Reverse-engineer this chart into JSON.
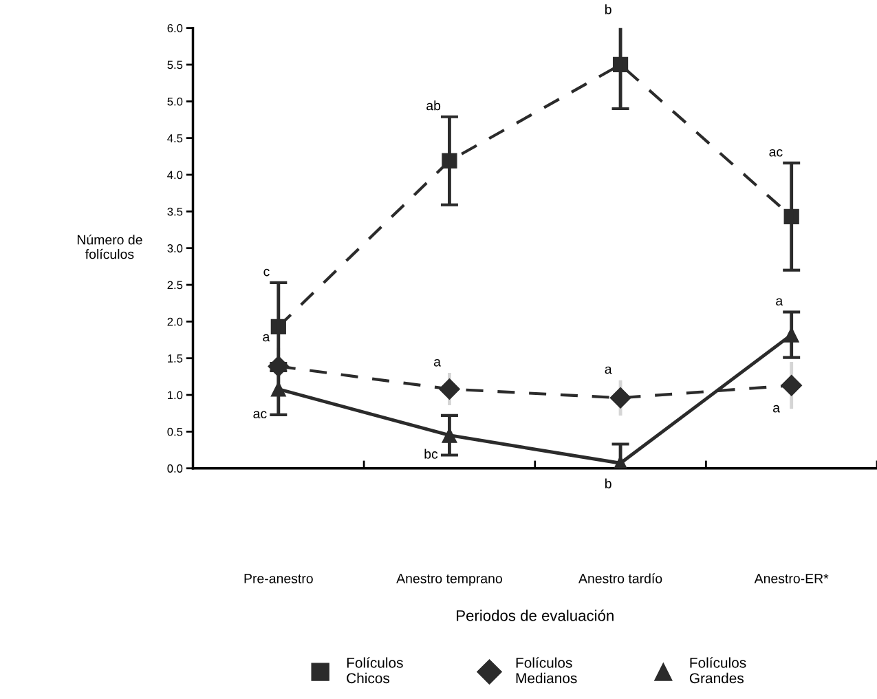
{
  "chart_data": {
    "type": "line",
    "categories": [
      "Pre-anestro",
      "Anestro temprano",
      "Anestro tardío",
      "Anestro-ER*"
    ],
    "xlabel": "Periodos de evaluación",
    "ylabel": "Número de\nfolículos",
    "ylim": [
      0,
      6
    ],
    "yticks": [
      {
        "value": 0,
        "label": "0.0"
      },
      {
        "value": 0.5,
        "label": "0.5"
      },
      {
        "value": 1,
        "label": "1.0"
      },
      {
        "value": 1.5,
        "label": "1.5"
      },
      {
        "value": 2,
        "label": "2.0"
      },
      {
        "value": 2.5,
        "label": "2.5"
      },
      {
        "value": 3,
        "label": "3.0"
      },
      {
        "value": 3.5,
        "label": "3.5"
      },
      {
        "value": 4,
        "label": "4.0"
      },
      {
        "value": 4.5,
        "label": "4.5"
      },
      {
        "value": 5,
        "label": "5.0"
      },
      {
        "value": 5.5,
        "label": "5.5"
      },
      {
        "value": 6,
        "label": "6.0"
      }
    ],
    "grid": false,
    "legend": "bottom",
    "series": [
      {
        "name": "Folículos\nChicos",
        "color": "#2b2b2b",
        "marker": "square",
        "line_style": "dashed",
        "values": [
          1.93,
          4.19,
          5.5,
          3.43
        ],
        "errors": [
          0.6,
          0.6,
          0.6,
          0.73
        ]
      },
      {
        "name": "Folículos\nMedianos",
        "color": "#2b2b2b",
        "marker": "diamond",
        "line_style": "dashed",
        "values": [
          1.39,
          1.08,
          0.96,
          1.13
        ],
        "errors": [
          0.25,
          0.22,
          0.24,
          0.32
        ]
      },
      {
        "name": "Folículos\nGrandes",
        "color": "#2b2b2b",
        "marker": "triangle",
        "line_style": "solid",
        "values": [
          1.08,
          0.45,
          0.07,
          1.82
        ],
        "errors": [
          0.35,
          0.27,
          0.26,
          0.31
        ]
      }
    ],
    "annotations": [
      {
        "text": "c",
        "x": "Pre-anestro",
        "y": 2.53
      },
      {
        "text": "ab",
        "x": "Anestro temprano",
        "y": 4.79
      },
      {
        "text": "b",
        "x": "Anestro tardío",
        "y": 6.1
      },
      {
        "text": "ac",
        "x": "Anestro-ER*",
        "y": 4.16
      },
      {
        "text": "a",
        "x": "Pre-anestro",
        "y": 1.64
      },
      {
        "text": "a",
        "x": "Anestro temprano",
        "y": 1.3
      },
      {
        "text": "a",
        "x": "Anestro tardío",
        "y": 1.2
      },
      {
        "text": "a",
        "x": "Anestro-ER*",
        "y": 0.81
      },
      {
        "text": "ac",
        "x": "Pre-anestro",
        "y": 0.73
      },
      {
        "text": "bc",
        "x": "Anestro temprano",
        "y": 0.18
      },
      {
        "text": "b",
        "x": "Anestro tardío",
        "y": 0.07
      },
      {
        "text": "a",
        "x": "Anestro-ER*",
        "y": 2.13
      }
    ]
  }
}
